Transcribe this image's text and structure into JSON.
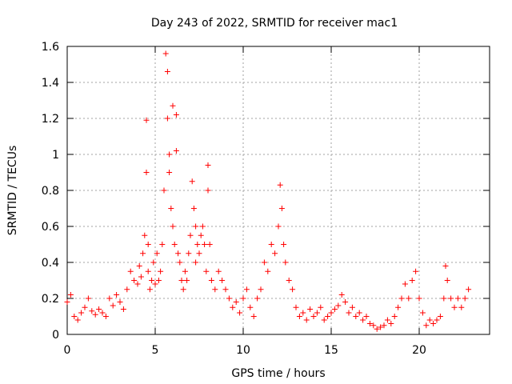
{
  "chart_data": {
    "type": "scatter",
    "title": "Day 243 of 2022, SRMTID for receiver mac1",
    "xlabel": "GPS time / hours",
    "ylabel": "SRMTID / TECUs",
    "xlim": [
      0,
      24
    ],
    "ylim": [
      0,
      1.6
    ],
    "xticks": [
      0,
      5,
      10,
      15,
      20
    ],
    "xtick_labels": [
      "0",
      "5",
      "10",
      "15",
      "20"
    ],
    "yticks": [
      0,
      0.2,
      0.4,
      0.6,
      0.8,
      1,
      1.2,
      1.4,
      1.6
    ],
    "ytick_labels": [
      "0",
      "0.2",
      "0.4",
      "0.6",
      "0.8",
      "1",
      "1.2",
      "1.4",
      "1.6"
    ],
    "grid": true,
    "marker": "+",
    "marker_color": "#ff0000",
    "series": [
      {
        "name": "SRMTID",
        "x": [
          0.0,
          0.2,
          0.4,
          0.6,
          0.8,
          1.0,
          1.2,
          1.4,
          1.6,
          1.8,
          2.0,
          2.2,
          2.4,
          2.6,
          2.8,
          3.0,
          3.2,
          3.4,
          3.6,
          3.8,
          4.0,
          4.1,
          4.2,
          4.3,
          4.4,
          4.5,
          4.5,
          4.6,
          4.6,
          4.7,
          4.8,
          4.9,
          5.0,
          5.1,
          5.2,
          5.3,
          5.4,
          5.5,
          5.6,
          5.7,
          5.7,
          5.8,
          5.8,
          5.9,
          6.0,
          6.0,
          6.1,
          6.2,
          6.2,
          6.3,
          6.4,
          6.5,
          6.6,
          6.7,
          6.8,
          6.9,
          7.0,
          7.1,
          7.2,
          7.3,
          7.3,
          7.4,
          7.5,
          7.6,
          7.7,
          7.8,
          7.9,
          8.0,
          8.0,
          8.1,
          8.2,
          8.4,
          8.6,
          8.8,
          9.0,
          9.2,
          9.4,
          9.6,
          9.8,
          10.0,
          10.2,
          10.4,
          10.6,
          10.8,
          11.0,
          11.2,
          11.4,
          11.6,
          11.8,
          12.0,
          12.1,
          12.2,
          12.3,
          12.4,
          12.6,
          12.8,
          13.0,
          13.2,
          13.4,
          13.6,
          13.8,
          14.0,
          14.2,
          14.4,
          14.6,
          14.8,
          15.0,
          15.2,
          15.4,
          15.6,
          15.8,
          16.0,
          16.2,
          16.4,
          16.6,
          16.8,
          17.0,
          17.2,
          17.4,
          17.6,
          17.8,
          18.0,
          18.2,
          18.4,
          18.6,
          18.8,
          19.0,
          19.2,
          19.4,
          19.6,
          19.8,
          20.0,
          20.2,
          20.4,
          20.6,
          20.8,
          21.0,
          21.2,
          21.4,
          21.5,
          21.6,
          21.8,
          22.0,
          22.2,
          22.4,
          22.6,
          22.8
        ],
        "y": [
          0.18,
          0.22,
          0.1,
          0.08,
          0.12,
          0.15,
          0.2,
          0.13,
          0.11,
          0.14,
          0.12,
          0.1,
          0.2,
          0.16,
          0.22,
          0.18,
          0.14,
          0.25,
          0.35,
          0.3,
          0.28,
          0.38,
          0.32,
          0.45,
          0.55,
          1.19,
          0.9,
          0.35,
          0.5,
          0.25,
          0.3,
          0.4,
          0.28,
          0.45,
          0.3,
          0.35,
          0.5,
          0.8,
          1.56,
          1.46,
          1.2,
          1.0,
          0.9,
          0.7,
          1.27,
          0.6,
          0.5,
          1.22,
          1.02,
          0.45,
          0.4,
          0.3,
          0.25,
          0.35,
          0.3,
          0.45,
          0.55,
          0.85,
          0.7,
          0.6,
          0.4,
          0.5,
          0.45,
          0.55,
          0.6,
          0.5,
          0.35,
          0.94,
          0.8,
          0.5,
          0.3,
          0.25,
          0.35,
          0.3,
          0.25,
          0.2,
          0.15,
          0.18,
          0.12,
          0.2,
          0.25,
          0.15,
          0.1,
          0.2,
          0.25,
          0.4,
          0.35,
          0.5,
          0.45,
          0.6,
          0.83,
          0.7,
          0.5,
          0.4,
          0.3,
          0.25,
          0.15,
          0.1,
          0.12,
          0.08,
          0.14,
          0.1,
          0.12,
          0.15,
          0.08,
          0.1,
          0.12,
          0.14,
          0.16,
          0.22,
          0.18,
          0.12,
          0.15,
          0.1,
          0.12,
          0.08,
          0.1,
          0.06,
          0.05,
          0.03,
          0.04,
          0.05,
          0.08,
          0.06,
          0.1,
          0.15,
          0.2,
          0.28,
          0.2,
          0.3,
          0.35,
          0.2,
          0.12,
          0.05,
          0.08,
          0.06,
          0.08,
          0.1,
          0.2,
          0.38,
          0.3,
          0.2,
          0.15,
          0.2,
          0.15,
          0.2,
          0.25
        ]
      }
    ]
  }
}
